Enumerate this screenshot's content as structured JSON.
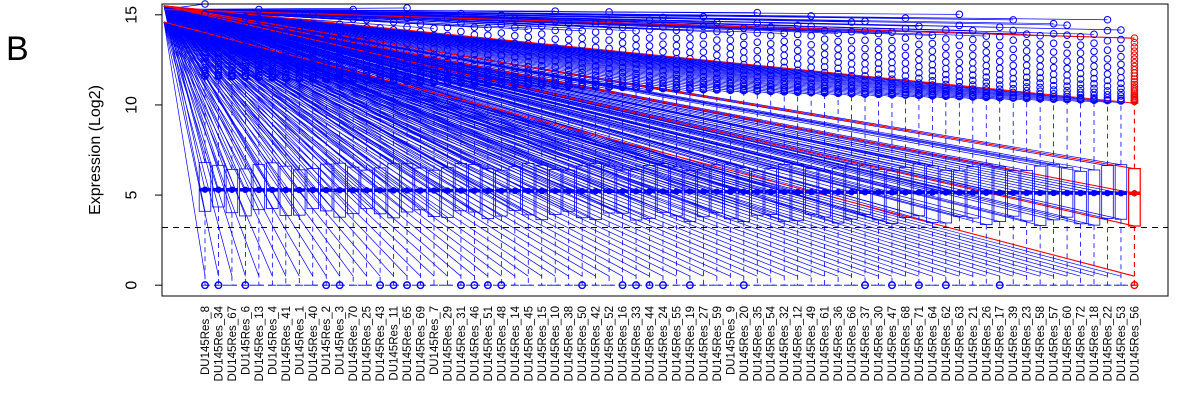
{
  "panel_label": "B",
  "chart_data": {
    "type": "boxplot",
    "title": "",
    "xlabel": "",
    "ylabel": "Expression (Log2)",
    "ylim": [
      -0.6,
      15.6
    ],
    "yticks": [
      0,
      5,
      10,
      15
    ],
    "reference_line_y": 3.2,
    "grid": false,
    "legend": "none",
    "colors": {
      "normal": "#0000ff",
      "highlight": "#ff0000",
      "axis": "#000000"
    },
    "categories": [
      "DU145Res_8",
      "DU145Res_34",
      "DU145Res_67",
      "DU145Res_6",
      "DU145Res_13",
      "DU145Res_4",
      "DU145Res_41",
      "DU145Res_1",
      "DU145Res_40",
      "DU145Res_2",
      "DU145Res_3",
      "DU145Res_70",
      "DU145Res_25",
      "DU145Res_43",
      "DU145Res_11",
      "DU145Res_65",
      "DU145Res_69",
      "DU145Res_7",
      "DU145Res_29",
      "DU145Res_31",
      "DU145Res_46",
      "DU145Res_51",
      "DU145Res_48",
      "DU145Res_14",
      "DU145Res_45",
      "DU145Res_15",
      "DU145Res_10",
      "DU145Res_38",
      "DU145Res_50",
      "DU145Res_42",
      "DU145Res_52",
      "DU145Res_16",
      "DU145Res_33",
      "DU145Res_44",
      "DU145Res_24",
      "DU145Res_55",
      "DU145Res_19",
      "DU145Res_27",
      "DU145Res_59",
      "DU145Res_9",
      "DU145Res_20",
      "DU145Res_35",
      "DU145Res_54",
      "DU145Res_32",
      "DU145Res_12",
      "DU145Res_49",
      "DU145Res_61",
      "DU145Res_36",
      "DU145Res_66",
      "DU145Res_37",
      "DU145Res_30",
      "DU145Res_47",
      "DU145Res_68",
      "DU145Res_71",
      "DU145Res_64",
      "DU145Res_62",
      "DU145Res_63",
      "DU145Res_21",
      "DU145Res_26",
      "DU145Res_17",
      "DU145Res_39",
      "DU145Res_23",
      "DU145Res_58",
      "DU145Res_57",
      "DU145Res_60",
      "DU145Res_72",
      "DU145Res_18",
      "DU145Res_22",
      "DU145Res_53",
      "DU145Res_56"
    ],
    "box_stats": {
      "median": 5.3,
      "q1_start": 4.1,
      "q1_end": 3.5,
      "q3_start": 6.6,
      "q3_end": 6.5,
      "whisker_low": 0.0,
      "whisker_high_start": 11.5,
      "whisker_high_end": 10.1,
      "outlier_max_start": 15.6,
      "outlier_max_end": 14.9,
      "highlight_index": 69
    }
  }
}
